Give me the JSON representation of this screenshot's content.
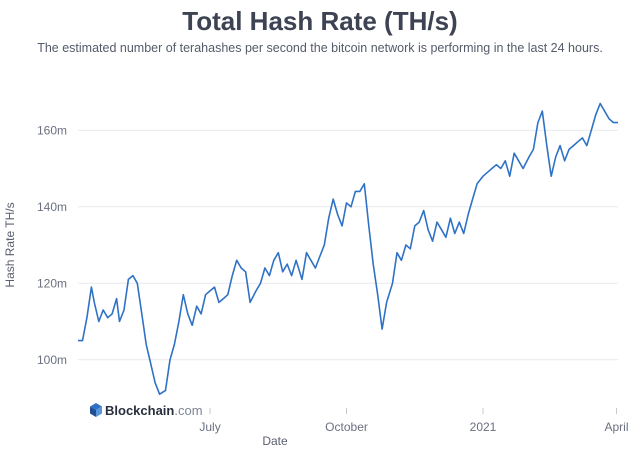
{
  "chart_data": {
    "type": "line",
    "title": "Total Hash Rate (TH/s)",
    "subtitle": "The estimated number of terahashes per second the bitcoin network is performing in the last 24 hours.",
    "xlabel": "Date",
    "ylabel": "Hash Rate TH/s",
    "xlim": [
      "2020-04-03",
      "2021-04-02"
    ],
    "ylim": [
      90,
      170
    ],
    "yticks": [
      {
        "value": 100,
        "label": "100m"
      },
      {
        "value": 120,
        "label": "120m"
      },
      {
        "value": 140,
        "label": "140m"
      },
      {
        "value": 160,
        "label": "160m"
      }
    ],
    "xticks": [
      {
        "value": "2020-07-01",
        "label": "July"
      },
      {
        "value": "2020-10-01",
        "label": "October"
      },
      {
        "value": "2021-01-01",
        "label": "2021"
      },
      {
        "value": "2021-04-01",
        "label": "April"
      }
    ],
    "grid": "horizontal",
    "series": [
      {
        "color": "#2f72c5",
        "x": [
          "2020-04-03",
          "2020-04-06",
          "2020-04-09",
          "2020-04-12",
          "2020-04-14",
          "2020-04-17",
          "2020-04-20",
          "2020-04-23",
          "2020-04-26",
          "2020-04-29",
          "2020-05-01",
          "2020-05-04",
          "2020-05-07",
          "2020-05-10",
          "2020-05-13",
          "2020-05-16",
          "2020-05-19",
          "2020-05-22",
          "2020-05-25",
          "2020-05-28",
          "2020-06-01",
          "2020-06-04",
          "2020-06-07",
          "2020-06-10",
          "2020-06-13",
          "2020-06-16",
          "2020-06-19",
          "2020-06-22",
          "2020-06-25",
          "2020-06-28",
          "2020-07-01",
          "2020-07-04",
          "2020-07-07",
          "2020-07-10",
          "2020-07-13",
          "2020-07-16",
          "2020-07-19",
          "2020-07-22",
          "2020-07-25",
          "2020-07-28",
          "2020-08-01",
          "2020-08-04",
          "2020-08-07",
          "2020-08-10",
          "2020-08-13",
          "2020-08-16",
          "2020-08-19",
          "2020-08-22",
          "2020-08-25",
          "2020-08-28",
          "2020-09-01",
          "2020-09-04",
          "2020-09-07",
          "2020-09-10",
          "2020-09-13",
          "2020-09-16",
          "2020-09-19",
          "2020-09-22",
          "2020-09-25",
          "2020-09-28",
          "2020-10-01",
          "2020-10-04",
          "2020-10-07",
          "2020-10-10",
          "2020-10-13",
          "2020-10-16",
          "2020-10-19",
          "2020-10-22",
          "2020-10-25",
          "2020-10-28",
          "2020-11-01",
          "2020-11-04",
          "2020-11-07",
          "2020-11-10",
          "2020-11-13",
          "2020-11-16",
          "2020-11-19",
          "2020-11-22",
          "2020-11-25",
          "2020-11-28",
          "2020-12-01",
          "2020-12-04",
          "2020-12-07",
          "2020-12-10",
          "2020-12-13",
          "2020-12-16",
          "2020-12-19",
          "2020-12-22",
          "2020-12-25",
          "2020-12-28",
          "2021-01-01",
          "2021-01-04",
          "2021-01-07",
          "2021-01-10",
          "2021-01-13",
          "2021-01-16",
          "2021-01-19",
          "2021-01-22",
          "2021-01-25",
          "2021-01-28",
          "2021-02-01",
          "2021-02-04",
          "2021-02-07",
          "2021-02-10",
          "2021-02-13",
          "2021-02-16",
          "2021-02-19",
          "2021-02-22",
          "2021-02-25",
          "2021-02-28",
          "2021-03-03",
          "2021-03-06",
          "2021-03-09",
          "2021-03-12",
          "2021-03-15",
          "2021-03-18",
          "2021-03-21",
          "2021-03-24",
          "2021-03-27",
          "2021-03-30",
          "2021-04-02"
        ],
        "values": [
          105,
          105,
          111,
          119,
          115,
          110,
          113,
          111,
          112,
          116,
          110,
          113,
          121,
          122,
          120,
          112,
          104,
          99,
          94,
          91,
          92,
          100,
          104,
          110,
          117,
          112,
          109,
          114,
          112,
          117,
          118,
          119,
          115,
          116,
          117,
          122,
          126,
          124,
          123,
          115,
          118,
          120,
          124,
          122,
          126,
          128,
          123,
          125,
          122,
          126,
          121,
          128,
          126,
          124,
          127,
          130,
          137,
          142,
          138,
          135,
          141,
          140,
          144,
          144,
          146,
          135,
          125,
          117,
          108,
          115,
          120,
          128,
          126,
          130,
          129,
          135,
          136,
          139,
          134,
          131,
          136,
          134,
          132,
          137,
          133,
          136,
          133,
          138,
          142,
          146,
          148,
          149,
          150,
          151,
          150,
          152,
          148,
          154,
          152,
          150,
          153,
          155,
          162,
          165,
          156,
          148,
          153,
          156,
          152,
          155,
          156,
          157,
          158,
          156,
          160,
          164,
          167,
          165,
          163,
          162,
          162
        ]
      }
    ],
    "watermark": {
      "brand": "Blockchain",
      "suffix": ".com",
      "icon": "blockchain-cube-icon"
    }
  }
}
